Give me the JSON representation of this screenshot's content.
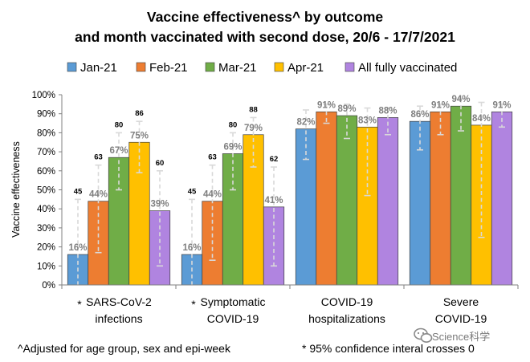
{
  "chart_data": {
    "type": "bar",
    "title": [
      "Vaccine effectiveness^ by outcome",
      "and month vaccinated with second dose, 20/6 - 17/7/2021"
    ],
    "ylabel": "Vaccine effectiveness",
    "ylim": [
      0,
      100
    ],
    "yticks": [
      "0%",
      "10%",
      "20%",
      "30%",
      "40%",
      "50%",
      "60%",
      "70%",
      "80%",
      "90%",
      "100%"
    ],
    "grid": false,
    "legend_position": "top",
    "categories": [
      {
        "lines": [
          "SARS-CoV-2",
          "infections"
        ],
        "marker": "*"
      },
      {
        "lines": [
          "Symptomatic",
          "COVID-19"
        ],
        "marker": "*"
      },
      {
        "lines": [
          "COVID-19",
          "hospitalizations"
        ],
        "marker": ""
      },
      {
        "lines": [
          "Severe",
          "COVID-19"
        ],
        "marker": ""
      }
    ],
    "series": [
      {
        "name": "Jan-21",
        "color": "#5b9bd5",
        "values": [
          16,
          16,
          82,
          86
        ],
        "labels": [
          "16%",
          "16%",
          "82%",
          "86%"
        ],
        "ci_lower": [
          -23,
          -20,
          66,
          71
        ],
        "ci_upper": [
          45,
          45,
          92,
          94
        ],
        "upper_text": [
          "45",
          "45",
          "",
          ""
        ]
      },
      {
        "name": "Feb-21",
        "color": "#ed7d31",
        "values": [
          44,
          44,
          91,
          91
        ],
        "labels": [
          "44%",
          "44%",
          "91%",
          "91%"
        ],
        "ci_lower": [
          17,
          13,
          85,
          79
        ],
        "ci_upper": [
          63,
          63,
          95,
          95
        ],
        "upper_text": [
          "63",
          "63",
          "",
          ""
        ]
      },
      {
        "name": "Mar-21",
        "color": "#70ad47",
        "values": [
          67,
          69,
          89,
          94
        ],
        "labels": [
          "67%",
          "69%",
          "89%",
          "94%"
        ],
        "ci_lower": [
          50,
          50,
          77,
          81
        ],
        "ci_upper": [
          80,
          80,
          95,
          98
        ],
        "upper_text": [
          "80",
          "80",
          "",
          ""
        ]
      },
      {
        "name": "Apr-21",
        "color": "#ffc000",
        "values": [
          75,
          79,
          83,
          84
        ],
        "labels": [
          "75%",
          "79%",
          "83%",
          "84%"
        ],
        "ci_lower": [
          59,
          62,
          47,
          25
        ],
        "ci_upper": [
          86,
          88,
          93,
          96
        ],
        "upper_text": [
          "86",
          "88",
          "",
          ""
        ]
      },
      {
        "name": "All fully vaccinated",
        "color": "#b084e0",
        "values": [
          39,
          41,
          88,
          91
        ],
        "labels": [
          "39%",
          "41%",
          "88%",
          "91%"
        ],
        "ci_lower": [
          10,
          10,
          79,
          83
        ],
        "ci_upper": [
          60,
          62,
          93,
          95
        ],
        "upper_text": [
          "60",
          "62",
          "",
          ""
        ]
      }
    ]
  },
  "footnotes": {
    "left": "^Adjusted for age group, sex and epi-week",
    "right": "* 95% confidence interal crosses 0"
  },
  "watermark": "Science科学"
}
